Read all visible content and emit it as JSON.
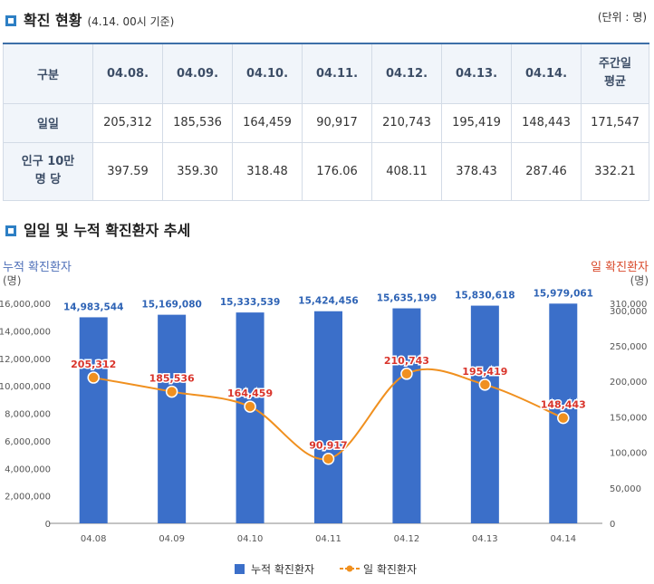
{
  "section1": {
    "title": "확진 현황",
    "subtitle": "(4.14. 00시 기준)",
    "unit": "(단위 : 명)"
  },
  "table": {
    "headers": [
      "구분",
      "04.08.",
      "04.09.",
      "04.10.",
      "04.11.",
      "04.12.",
      "04.13.",
      "04.14.",
      "주간일 평균"
    ],
    "rows": [
      {
        "label": "일일",
        "values": [
          "205,312",
          "185,536",
          "164,459",
          "90,917",
          "210,743",
          "195,419",
          "148,443",
          "171,547"
        ]
      },
      {
        "label": "인구 10만 명 당",
        "values": [
          "397.59",
          "359.30",
          "318.48",
          "176.06",
          "408.11",
          "378.43",
          "287.46",
          "332.21"
        ]
      }
    ]
  },
  "section2": {
    "title": "일일 및 누적 확진환자 추세"
  },
  "chart_data": {
    "type": "bar",
    "categories": [
      "04.08",
      "04.09",
      "04.10",
      "04.11",
      "04.12",
      "04.13",
      "04.14"
    ],
    "left_axis": {
      "label": "누적 확진환자",
      "unit": "(명)",
      "range": [
        0,
        16000000
      ],
      "ticks": [
        0,
        2000000,
        4000000,
        6000000,
        8000000,
        10000000,
        12000000,
        14000000,
        16000000
      ]
    },
    "right_axis": {
      "label": "일 확진환자",
      "unit": "(명)",
      "range": [
        0,
        310000
      ],
      "ticks": [
        0,
        50000,
        100000,
        150000,
        200000,
        250000,
        300000,
        310000
      ]
    },
    "series": [
      {
        "name": "누적 확진환자",
        "type": "bar",
        "axis": "left",
        "color": "#3b6fc9",
        "values": [
          14983544,
          15169080,
          15333539,
          15424456,
          15635199,
          15830618,
          15979061
        ]
      },
      {
        "name": "일 확진환자",
        "type": "line",
        "axis": "right",
        "color": "#f0901f",
        "label_color": "#d9342b",
        "values": [
          205312,
          185536,
          164459,
          90917,
          210743,
          195419,
          148443
        ]
      }
    ],
    "legend_position": "bottom",
    "grid": false
  }
}
